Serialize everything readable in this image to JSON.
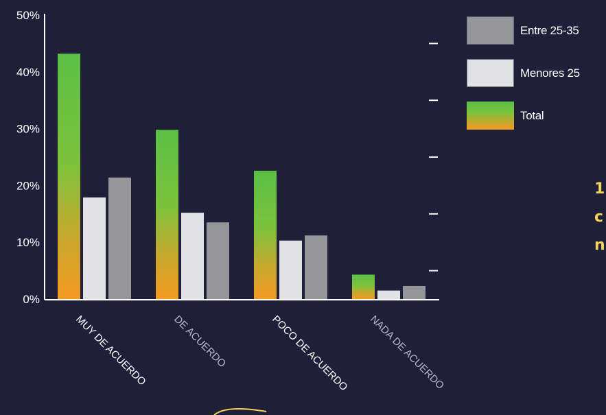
{
  "chart_data": {
    "type": "bar",
    "categories": [
      "MUY DE ACUERDO",
      "DE ACUERDO",
      "POCO DE ACUERDO",
      "NADA DE ACUERDO"
    ],
    "series": [
      {
        "name": "Total",
        "values": [
          43.2,
          29.8,
          22.6,
          4.3
        ]
      },
      {
        "name": "Menores 25",
        "values": [
          17.9,
          15.2,
          10.3,
          1.5
        ]
      },
      {
        "name": "Entre 25-35",
        "values": [
          21.4,
          13.5,
          11.2,
          2.3
        ]
      }
    ],
    "ylim": [
      0,
      50
    ],
    "yticks": [
      "0%",
      "10%",
      "20%",
      "30%",
      "40%",
      "50%"
    ],
    "colors": {
      "Total_top": "#5bbf45",
      "Total_bottom": "#f39a22",
      "Menores 25": "#e2e2e6",
      "Entre 25-35": "#96969a",
      "category_label_bright": "#ffffff",
      "category_label_dim": "#b8b8c4"
    },
    "legend": [
      "Entre 25-35",
      "Menores 25",
      "Total"
    ],
    "legend_position": "top-right",
    "grid": false
  },
  "side_text": [
    "1",
    "c",
    "n"
  ],
  "colors": {
    "background": "#1f1f3a",
    "accent": "#f0d45a"
  }
}
